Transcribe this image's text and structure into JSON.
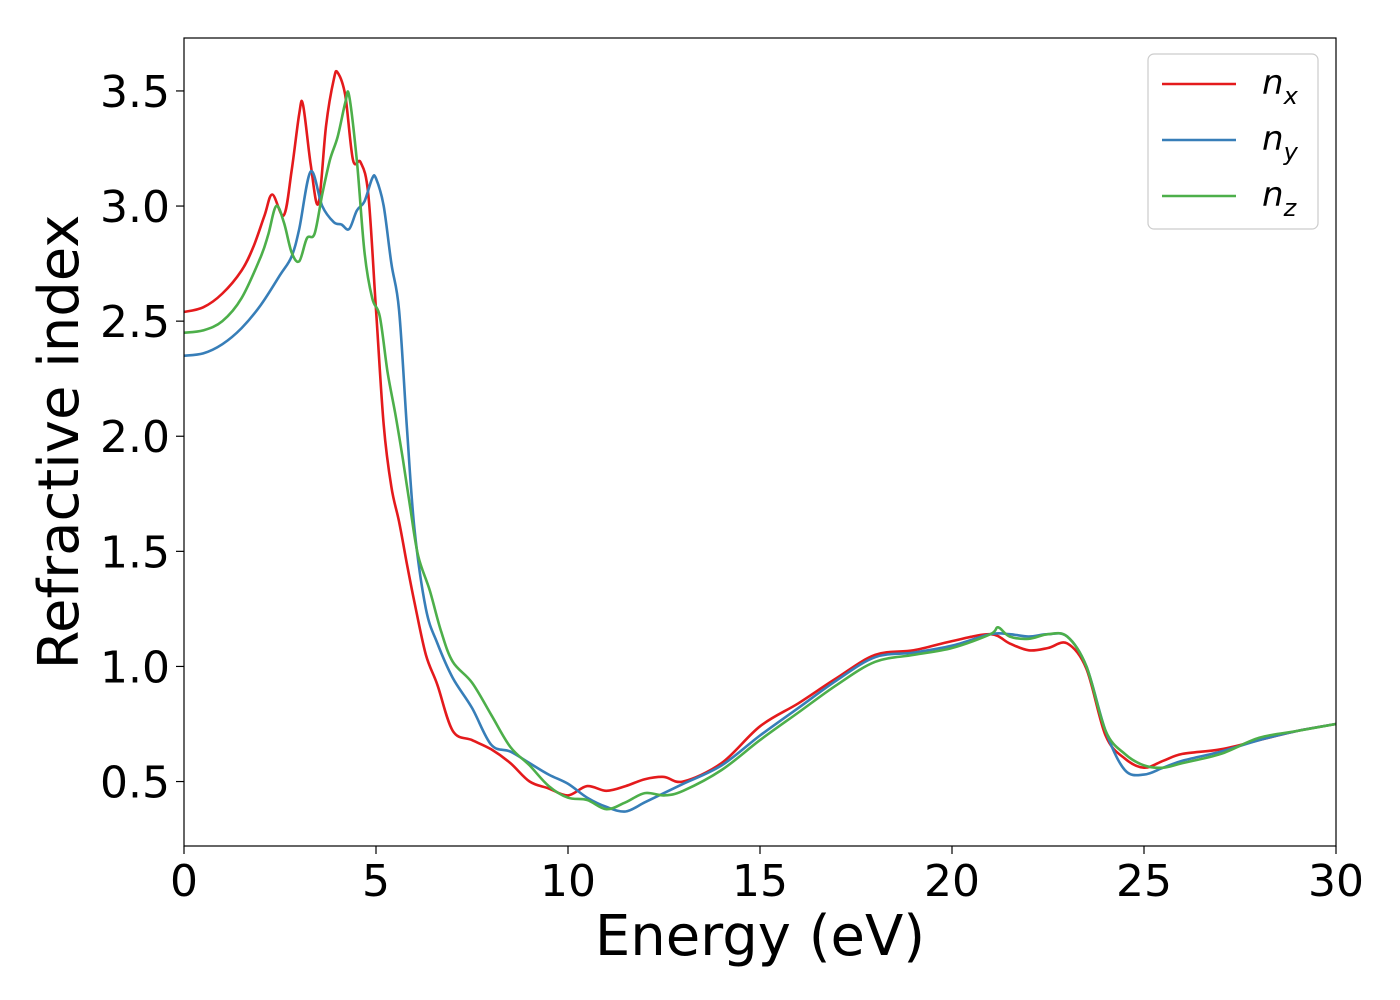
{
  "chart_data": {
    "type": "line",
    "title": "",
    "xlabel": "Energy (eV)",
    "ylabel": "Refractive index",
    "xlim": [
      0,
      30
    ],
    "ylim": [
      0.22,
      3.73
    ],
    "xticks": [
      0,
      5,
      10,
      15,
      20,
      25,
      30
    ],
    "yticks": [
      0.5,
      1.0,
      1.5,
      2.0,
      2.5,
      3.0,
      3.5
    ],
    "xtick_labels": [
      "0",
      "5",
      "10",
      "15",
      "20",
      "25",
      "30"
    ],
    "ytick_labels": [
      "0.5",
      "1.0",
      "1.5",
      "2.0",
      "2.5",
      "3.0",
      "3.5"
    ],
    "grid": false,
    "legend_position": "top-right",
    "series": [
      {
        "name": "n_x",
        "label_base": "n",
        "label_sub": "x",
        "color": "#e41a1c",
        "x": [
          0,
          0.5,
          1.0,
          1.5,
          1.8,
          2.1,
          2.3,
          2.6,
          2.8,
          3.0,
          3.1,
          3.3,
          3.5,
          3.7,
          3.9,
          4.0,
          4.2,
          4.4,
          4.6,
          4.8,
          5.0,
          5.2,
          5.4,
          5.6,
          5.8,
          6.0,
          6.3,
          6.6,
          7.0,
          7.5,
          8.0,
          8.5,
          9.0,
          9.5,
          10.0,
          10.5,
          11.0,
          11.5,
          12.0,
          12.5,
          13.0,
          14.0,
          15.0,
          16.0,
          17.0,
          18.0,
          19.0,
          20.0,
          21.0,
          21.5,
          22.0,
          22.5,
          23.0,
          23.5,
          24.0,
          24.5,
          25.0,
          25.5,
          26.0,
          27.0,
          28.0,
          29.0,
          30.0
        ],
        "values": [
          2.54,
          2.56,
          2.62,
          2.72,
          2.82,
          2.96,
          3.05,
          2.96,
          3.15,
          3.4,
          3.44,
          3.18,
          3.01,
          3.35,
          3.55,
          3.58,
          3.48,
          3.2,
          3.19,
          3.05,
          2.55,
          2.05,
          1.78,
          1.63,
          1.45,
          1.28,
          1.05,
          0.92,
          0.72,
          0.68,
          0.64,
          0.58,
          0.5,
          0.47,
          0.44,
          0.48,
          0.46,
          0.48,
          0.51,
          0.52,
          0.5,
          0.58,
          0.74,
          0.84,
          0.95,
          1.05,
          1.07,
          1.11,
          1.14,
          1.1,
          1.07,
          1.08,
          1.1,
          0.99,
          0.7,
          0.6,
          0.56,
          0.59,
          0.62,
          0.64,
          0.68,
          0.72,
          0.75
        ]
      },
      {
        "name": "n_y",
        "label_base": "n",
        "label_sub": "y",
        "color": "#377eb8",
        "x": [
          0,
          0.5,
          1.0,
          1.5,
          2.0,
          2.5,
          2.8,
          3.0,
          3.3,
          3.6,
          3.9,
          4.1,
          4.3,
          4.5,
          4.7,
          4.9,
          5.0,
          5.2,
          5.4,
          5.6,
          5.8,
          6.0,
          6.3,
          6.6,
          7.0,
          7.5,
          8.0,
          8.5,
          9.0,
          9.5,
          10.0,
          10.5,
          11.0,
          11.5,
          12.0,
          12.5,
          13.0,
          14.0,
          15.0,
          16.0,
          17.0,
          18.0,
          19.0,
          20.0,
          21.0,
          21.5,
          22.0,
          22.5,
          23.0,
          23.5,
          24.0,
          24.5,
          25.0,
          25.5,
          26.0,
          27.0,
          28.0,
          29.0,
          30.0
        ],
        "values": [
          2.35,
          2.36,
          2.4,
          2.47,
          2.57,
          2.7,
          2.78,
          2.9,
          3.15,
          3.0,
          2.93,
          2.92,
          2.9,
          2.98,
          3.02,
          3.12,
          3.12,
          3.0,
          2.75,
          2.55,
          2.05,
          1.6,
          1.25,
          1.1,
          0.95,
          0.82,
          0.66,
          0.63,
          0.58,
          0.53,
          0.49,
          0.43,
          0.39,
          0.37,
          0.41,
          0.45,
          0.49,
          0.57,
          0.7,
          0.82,
          0.94,
          1.04,
          1.06,
          1.09,
          1.14,
          1.14,
          1.13,
          1.14,
          1.13,
          1.0,
          0.72,
          0.55,
          0.53,
          0.56,
          0.59,
          0.63,
          0.68,
          0.72,
          0.75
        ]
      },
      {
        "name": "n_z",
        "label_base": "n",
        "label_sub": "z",
        "color": "#4daf4a",
        "x": [
          0,
          0.5,
          1.0,
          1.5,
          2.0,
          2.2,
          2.4,
          2.6,
          2.8,
          3.0,
          3.2,
          3.4,
          3.6,
          3.8,
          4.0,
          4.2,
          4.3,
          4.5,
          4.7,
          4.9,
          5.1,
          5.3,
          5.5,
          5.7,
          5.9,
          6.1,
          6.4,
          6.7,
          7.0,
          7.5,
          8.0,
          8.5,
          9.0,
          9.5,
          10.0,
          10.5,
          11.0,
          11.5,
          12.0,
          12.5,
          13.0,
          14.0,
          15.0,
          16.0,
          17.0,
          18.0,
          19.0,
          20.0,
          21.0,
          21.2,
          21.5,
          22.0,
          22.5,
          23.0,
          23.5,
          24.0,
          24.5,
          25.0,
          25.5,
          26.0,
          27.0,
          28.0,
          29.0,
          30.0
        ],
        "values": [
          2.45,
          2.46,
          2.5,
          2.6,
          2.78,
          2.88,
          3.0,
          2.93,
          2.8,
          2.76,
          2.86,
          2.88,
          3.05,
          3.2,
          3.3,
          3.45,
          3.48,
          3.2,
          2.8,
          2.6,
          2.52,
          2.28,
          2.1,
          1.9,
          1.68,
          1.48,
          1.33,
          1.15,
          1.02,
          0.93,
          0.79,
          0.65,
          0.57,
          0.48,
          0.43,
          0.42,
          0.38,
          0.41,
          0.45,
          0.44,
          0.46,
          0.55,
          0.68,
          0.8,
          0.92,
          1.02,
          1.05,
          1.08,
          1.14,
          1.17,
          1.13,
          1.12,
          1.14,
          1.13,
          1.0,
          0.72,
          0.62,
          0.57,
          0.56,
          0.58,
          0.62,
          0.69,
          0.72,
          0.75
        ]
      }
    ]
  }
}
